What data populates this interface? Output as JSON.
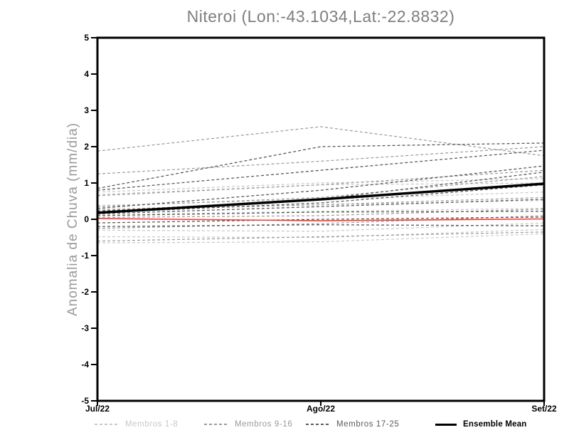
{
  "chart": {
    "title": "Niteroi (Lon:-43.1034,Lat:-22.8832)",
    "ylabel": "Anomalia de Chuva (mm/dia)"
  },
  "legend": {
    "items": [
      {
        "label": "Membros 1-8",
        "color": "#c8c8c8",
        "style": "dashed"
      },
      {
        "label": "Membros 9-16",
        "color": "#9a9a9a",
        "style": "dashed"
      },
      {
        "label": "Membros 17-25",
        "color": "#5a5a5a",
        "style": "dashed"
      },
      {
        "label": "Ensemble Mean",
        "color": "#000000",
        "style": "solid"
      }
    ]
  },
  "chart_data": {
    "type": "line",
    "title": "Niteroi (Lon:-43.1034,Lat:-22.8832)",
    "xlabel": "",
    "ylabel": "Anomalia de Chuva (mm/dia)",
    "categories": [
      "Jul/22",
      "Ago/22",
      "Set/22"
    ],
    "ylim": [
      -5,
      5
    ],
    "yticks": [
      5,
      4,
      3,
      2,
      1,
      0,
      -1,
      -2,
      -3,
      -4,
      -5
    ],
    "grid": false,
    "legend_position": "bottom",
    "axis_color": "#000000",
    "series_groups": [
      {
        "name": "Membros 1-8",
        "color": "#c8c8c8",
        "style": "dashed",
        "members": [
          [
            0.68,
            0.95,
            1.0
          ],
          [
            0.75,
            1.0,
            1.12
          ],
          [
            0.38,
            0.55,
            0.75
          ],
          [
            0.28,
            0.4,
            0.52
          ],
          [
            0.12,
            0.22,
            0.3
          ],
          [
            -0.3,
            -0.33,
            -0.1
          ],
          [
            -0.48,
            -0.5,
            -0.28
          ],
          [
            -0.65,
            -0.62,
            -0.4
          ]
        ]
      },
      {
        "name": "Membros 9-16",
        "color": "#9a9a9a",
        "style": "dashed",
        "members": [
          [
            1.88,
            2.55,
            1.75
          ],
          [
            1.25,
            1.6,
            2.0
          ],
          [
            0.65,
            0.95,
            1.35
          ],
          [
            0.35,
            0.6,
            1.18
          ],
          [
            0.25,
            0.4,
            0.6
          ],
          [
            0.05,
            0.1,
            0.28
          ],
          [
            -0.25,
            -0.12,
            0.1
          ],
          [
            -0.6,
            -0.48,
            -0.35
          ]
        ]
      },
      {
        "name": "Membros 17-25",
        "color": "#5a5a5a",
        "style": "dashed",
        "members": [
          [
            0.85,
            2.0,
            2.1
          ],
          [
            0.8,
            1.35,
            1.9
          ],
          [
            0.3,
            0.8,
            1.47
          ],
          [
            0.22,
            0.55,
            1.3
          ],
          [
            0.18,
            0.45,
            0.95
          ],
          [
            0.15,
            0.35,
            0.55
          ],
          [
            0.1,
            0.2,
            0.22
          ],
          [
            -0.1,
            0.0,
            0.06
          ],
          [
            -0.2,
            -0.15,
            -0.18
          ]
        ]
      }
    ],
    "reference_line": {
      "name": "zero-anomaly",
      "color": "#f23b30",
      "values": [
        0.02,
        -0.04,
        0.01
      ]
    },
    "ensemble_mean": {
      "name": "Ensemble Mean",
      "color": "#000000",
      "values": [
        0.18,
        0.55,
        0.98
      ]
    }
  }
}
